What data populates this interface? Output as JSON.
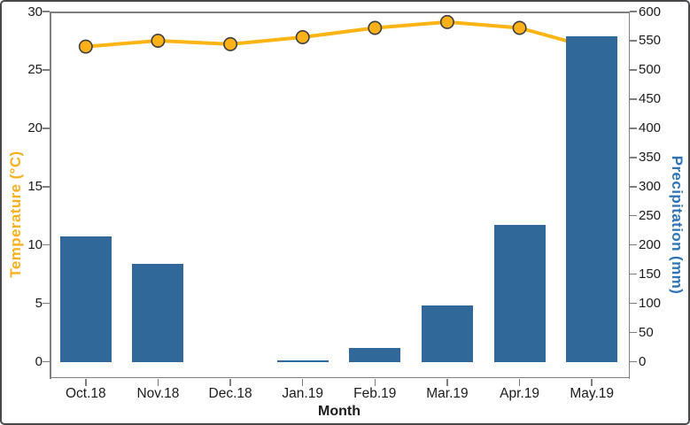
{
  "chart_data": {
    "type": "combo",
    "categories": [
      "Oct.18",
      "Nov.18",
      "Dec.18",
      "Jan.19",
      "Feb.19",
      "Mar.19",
      "Apr.19",
      "May.19"
    ],
    "series": [
      {
        "name": "Temperature (°C)",
        "type": "line",
        "axis": "left",
        "color": "#FCB514",
        "marker_fill": "#FBB117",
        "marker_edge": "#3e3e40",
        "values": [
          27.0,
          27.5,
          27.2,
          27.8,
          28.6,
          29.1,
          28.6,
          26.9
        ]
      },
      {
        "name": "Precipitation (mm)",
        "type": "bar",
        "axis": "right",
        "color": "#31689A",
        "values": [
          215,
          168,
          0,
          3,
          24,
          97,
          235,
          558
        ]
      }
    ],
    "xlabel": "Month",
    "left_axis": {
      "label": "Temperature (°C)",
      "color": "#F9AF1E",
      "ticks": [
        0,
        5,
        10,
        15,
        20,
        25,
        30
      ],
      "range": [
        0,
        30
      ]
    },
    "right_axis": {
      "label": "Precipitation (mm)",
      "color": "#2E74B5",
      "ticks": [
        0,
        50,
        100,
        150,
        200,
        250,
        300,
        350,
        400,
        450,
        500,
        550,
        600
      ],
      "range": [
        0,
        600
      ]
    },
    "grid": false,
    "legend": "none"
  }
}
